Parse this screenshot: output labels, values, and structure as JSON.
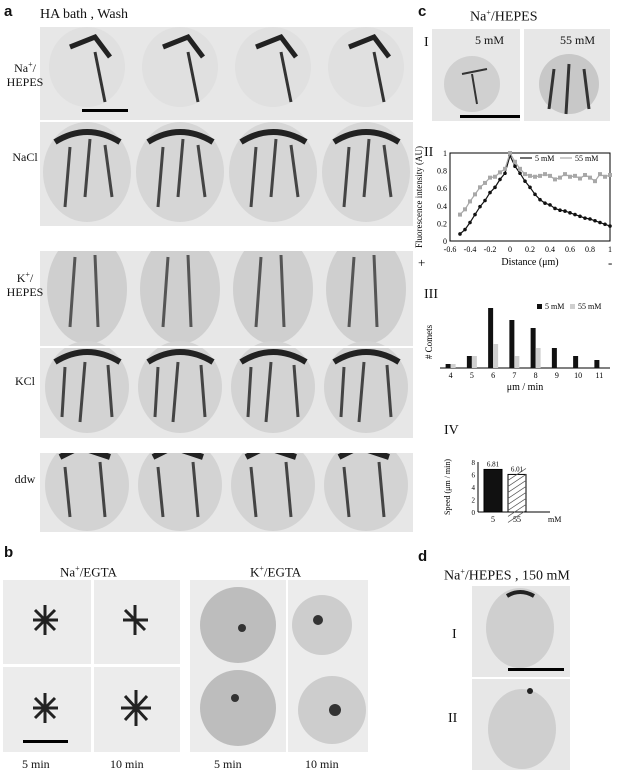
{
  "panel_a": {
    "letter": "a",
    "title": "HA bath , Wash",
    "rows": [
      {
        "label_main": "Na",
        "label_sup": "+",
        "label_rest": "/",
        "label_line2": "HEPES"
      },
      {
        "label_main": "NaCl",
        "label_sup": "",
        "label_rest": "",
        "label_line2": ""
      },
      {
        "label_main": "K",
        "label_sup": "+",
        "label_rest": "/",
        "label_line2": "HEPES"
      },
      {
        "label_main": "KCl",
        "label_sup": "",
        "label_rest": "",
        "label_line2": ""
      },
      {
        "label_main": "ddw",
        "label_sup": "",
        "label_rest": "",
        "label_line2": ""
      }
    ]
  },
  "panel_b": {
    "letter": "b",
    "group1": {
      "label_main": "Na",
      "label_sup": "+",
      "label_rest": "/EGTA"
    },
    "group2": {
      "label_main": "K",
      "label_sup": "+",
      "label_rest": "/EGTA"
    },
    "time_labels": [
      "5 min",
      "10 min",
      "5 min",
      "10 min"
    ]
  },
  "panel_c": {
    "letter": "c",
    "title_main": "Na",
    "title_sup": "+",
    "title_rest": "/HEPES",
    "sub_I": {
      "roman": "I",
      "image_labels": [
        "5 mM",
        "55 mM"
      ]
    },
    "sub_II": {
      "roman": "II",
      "legend": [
        "5 mM",
        "55 mM"
      ],
      "ylabel": "Fluorescence intensity (AU)",
      "xlabel": "Distance (μm)",
      "plus_sign": "+",
      "minus_sign": "-"
    },
    "sub_III": {
      "roman": "III",
      "legend": [
        "5 mM",
        "55 mM"
      ],
      "ylabel": "# Comets",
      "xlabel": "μm / min"
    },
    "sub_IV": {
      "roman": "IV",
      "ylabel": "Speed (μm / min)",
      "unit": "mM"
    }
  },
  "panel_d": {
    "letter": "d",
    "title_main": "Na",
    "title_sup": "+",
    "title_rest": "/HEPES , 150 mM",
    "romans": [
      "I",
      "II"
    ]
  },
  "colors": {
    "series_5mM": "#111111",
    "series_55mM": "#a8a8a8",
    "image_background": "#e7e7e7"
  },
  "chart_data": [
    {
      "type": "line",
      "xlabel": "Distance (μm)",
      "ylabel": "Fluorescence intensity (AU)",
      "xlim": [
        -0.6,
        1
      ],
      "ylim": [
        0,
        1
      ],
      "x_ticks": [
        "-0.6",
        "-0.4",
        "-0.2",
        "0",
        "0.2",
        "0.4",
        "0.6",
        "0.8",
        "1"
      ],
      "y_ticks": [
        "0",
        "0.2",
        "0.4",
        "0.6",
        "0.8",
        "1"
      ],
      "legend_position": "top-right",
      "series": [
        {
          "name": "5 mM",
          "x": [
            -0.5,
            -0.45,
            -0.4,
            -0.35,
            -0.3,
            -0.25,
            -0.2,
            -0.15,
            -0.1,
            -0.05,
            0,
            0.05,
            0.1,
            0.15,
            0.2,
            0.25,
            0.3,
            0.35,
            0.4,
            0.45,
            0.5,
            0.55,
            0.6,
            0.65,
            0.7,
            0.75,
            0.8,
            0.85,
            0.9,
            0.95,
            1
          ],
          "y": [
            0.08,
            0.13,
            0.21,
            0.3,
            0.39,
            0.46,
            0.55,
            0.61,
            0.7,
            0.77,
            0.97,
            0.85,
            0.77,
            0.68,
            0.61,
            0.53,
            0.47,
            0.43,
            0.41,
            0.37,
            0.35,
            0.34,
            0.32,
            0.3,
            0.28,
            0.26,
            0.25,
            0.23,
            0.21,
            0.19,
            0.17
          ]
        },
        {
          "name": "55 mM",
          "x": [
            -0.5,
            -0.45,
            -0.4,
            -0.35,
            -0.3,
            -0.25,
            -0.2,
            -0.15,
            -0.1,
            -0.05,
            0,
            0.05,
            0.1,
            0.15,
            0.2,
            0.25,
            0.3,
            0.35,
            0.4,
            0.45,
            0.5,
            0.55,
            0.6,
            0.65,
            0.7,
            0.75,
            0.8,
            0.85,
            0.9,
            0.95,
            1
          ],
          "y": [
            0.3,
            0.36,
            0.45,
            0.53,
            0.61,
            0.66,
            0.72,
            0.73,
            0.78,
            0.82,
            1.0,
            0.9,
            0.82,
            0.76,
            0.74,
            0.73,
            0.74,
            0.76,
            0.74,
            0.7,
            0.72,
            0.76,
            0.73,
            0.74,
            0.71,
            0.75,
            0.72,
            0.68,
            0.76,
            0.73,
            0.75
          ]
        }
      ]
    },
    {
      "type": "bar",
      "xlabel": "μm / min",
      "ylabel": "# Comets",
      "categories": [
        "4",
        "5",
        "6",
        "7",
        "8",
        "9",
        "10",
        "11"
      ],
      "ylim": [
        0,
        15
      ],
      "legend_position": "top-right",
      "series": [
        {
          "name": "5 mM",
          "values": [
            1,
            3,
            15,
            12,
            10,
            5,
            3,
            2
          ]
        },
        {
          "name": "55 mM",
          "values": [
            1,
            3,
            6,
            3,
            5,
            0,
            0,
            0
          ]
        }
      ]
    },
    {
      "type": "bar",
      "ylabel": "Speed (μm / min)",
      "categories": [
        "5",
        "55"
      ],
      "values": [
        6.81,
        6.01
      ],
      "data_labels": [
        "6.81",
        "6.01"
      ],
      "y_ticks": [
        "0",
        "2",
        "4",
        "6",
        "8"
      ],
      "ylim": [
        0,
        8
      ]
    }
  ]
}
